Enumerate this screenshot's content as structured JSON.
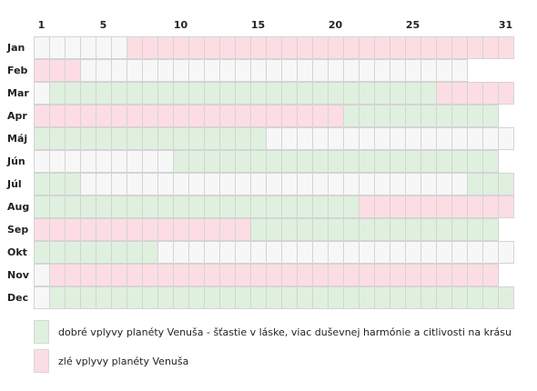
{
  "colors": {
    "good": "#dff0df",
    "bad": "#fddde4",
    "neutral": "#f7f7f7",
    "grid": "#d4d4d4"
  },
  "chart_data": {
    "type": "heatmap",
    "title": "",
    "x_tick_labels": [
      "1",
      "5",
      "10",
      "15",
      "20",
      "25",
      "31"
    ],
    "x_ticks": [
      1,
      5,
      10,
      15,
      20,
      25,
      31
    ],
    "months": [
      {
        "name": "Jan",
        "days": 31,
        "segments": [
          {
            "from": 7,
            "to": 31,
            "type": "bad"
          }
        ]
      },
      {
        "name": "Feb",
        "days": 28,
        "segments": [
          {
            "from": 1,
            "to": 3,
            "type": "bad"
          }
        ]
      },
      {
        "name": "Mar",
        "days": 31,
        "segments": [
          {
            "from": 2,
            "to": 26,
            "type": "good"
          },
          {
            "from": 27,
            "to": 31,
            "type": "bad"
          }
        ]
      },
      {
        "name": "Apr",
        "days": 30,
        "segments": [
          {
            "from": 1,
            "to": 20,
            "type": "bad"
          },
          {
            "from": 21,
            "to": 30,
            "type": "good"
          }
        ]
      },
      {
        "name": "Máj",
        "days": 31,
        "segments": [
          {
            "from": 1,
            "to": 15,
            "type": "good"
          }
        ]
      },
      {
        "name": "Jún",
        "days": 30,
        "segments": [
          {
            "from": 10,
            "to": 30,
            "type": "good"
          }
        ]
      },
      {
        "name": "Júl",
        "days": 31,
        "segments": [
          {
            "from": 1,
            "to": 3,
            "type": "good"
          },
          {
            "from": 29,
            "to": 31,
            "type": "good"
          }
        ]
      },
      {
        "name": "Aug",
        "days": 31,
        "segments": [
          {
            "from": 1,
            "to": 21,
            "type": "good"
          },
          {
            "from": 22,
            "to": 31,
            "type": "bad"
          }
        ]
      },
      {
        "name": "Sep",
        "days": 30,
        "segments": [
          {
            "from": 1,
            "to": 14,
            "type": "bad"
          },
          {
            "from": 15,
            "to": 30,
            "type": "good"
          }
        ]
      },
      {
        "name": "Okt",
        "days": 31,
        "segments": [
          {
            "from": 1,
            "to": 8,
            "type": "good"
          }
        ]
      },
      {
        "name": "Nov",
        "days": 30,
        "segments": [
          {
            "from": 2,
            "to": 30,
            "type": "bad"
          }
        ]
      },
      {
        "name": "Dec",
        "days": 31,
        "segments": [
          {
            "from": 2,
            "to": 31,
            "type": "good"
          }
        ]
      }
    ]
  },
  "legend": [
    {
      "type": "good",
      "label": "dobré vplyvy planéty Venuša - šťastie v láske, viac duševnej harmónie a citlivosti na krásu"
    },
    {
      "type": "bad",
      "label": "zlé vplyvy planéty Venuša"
    }
  ]
}
